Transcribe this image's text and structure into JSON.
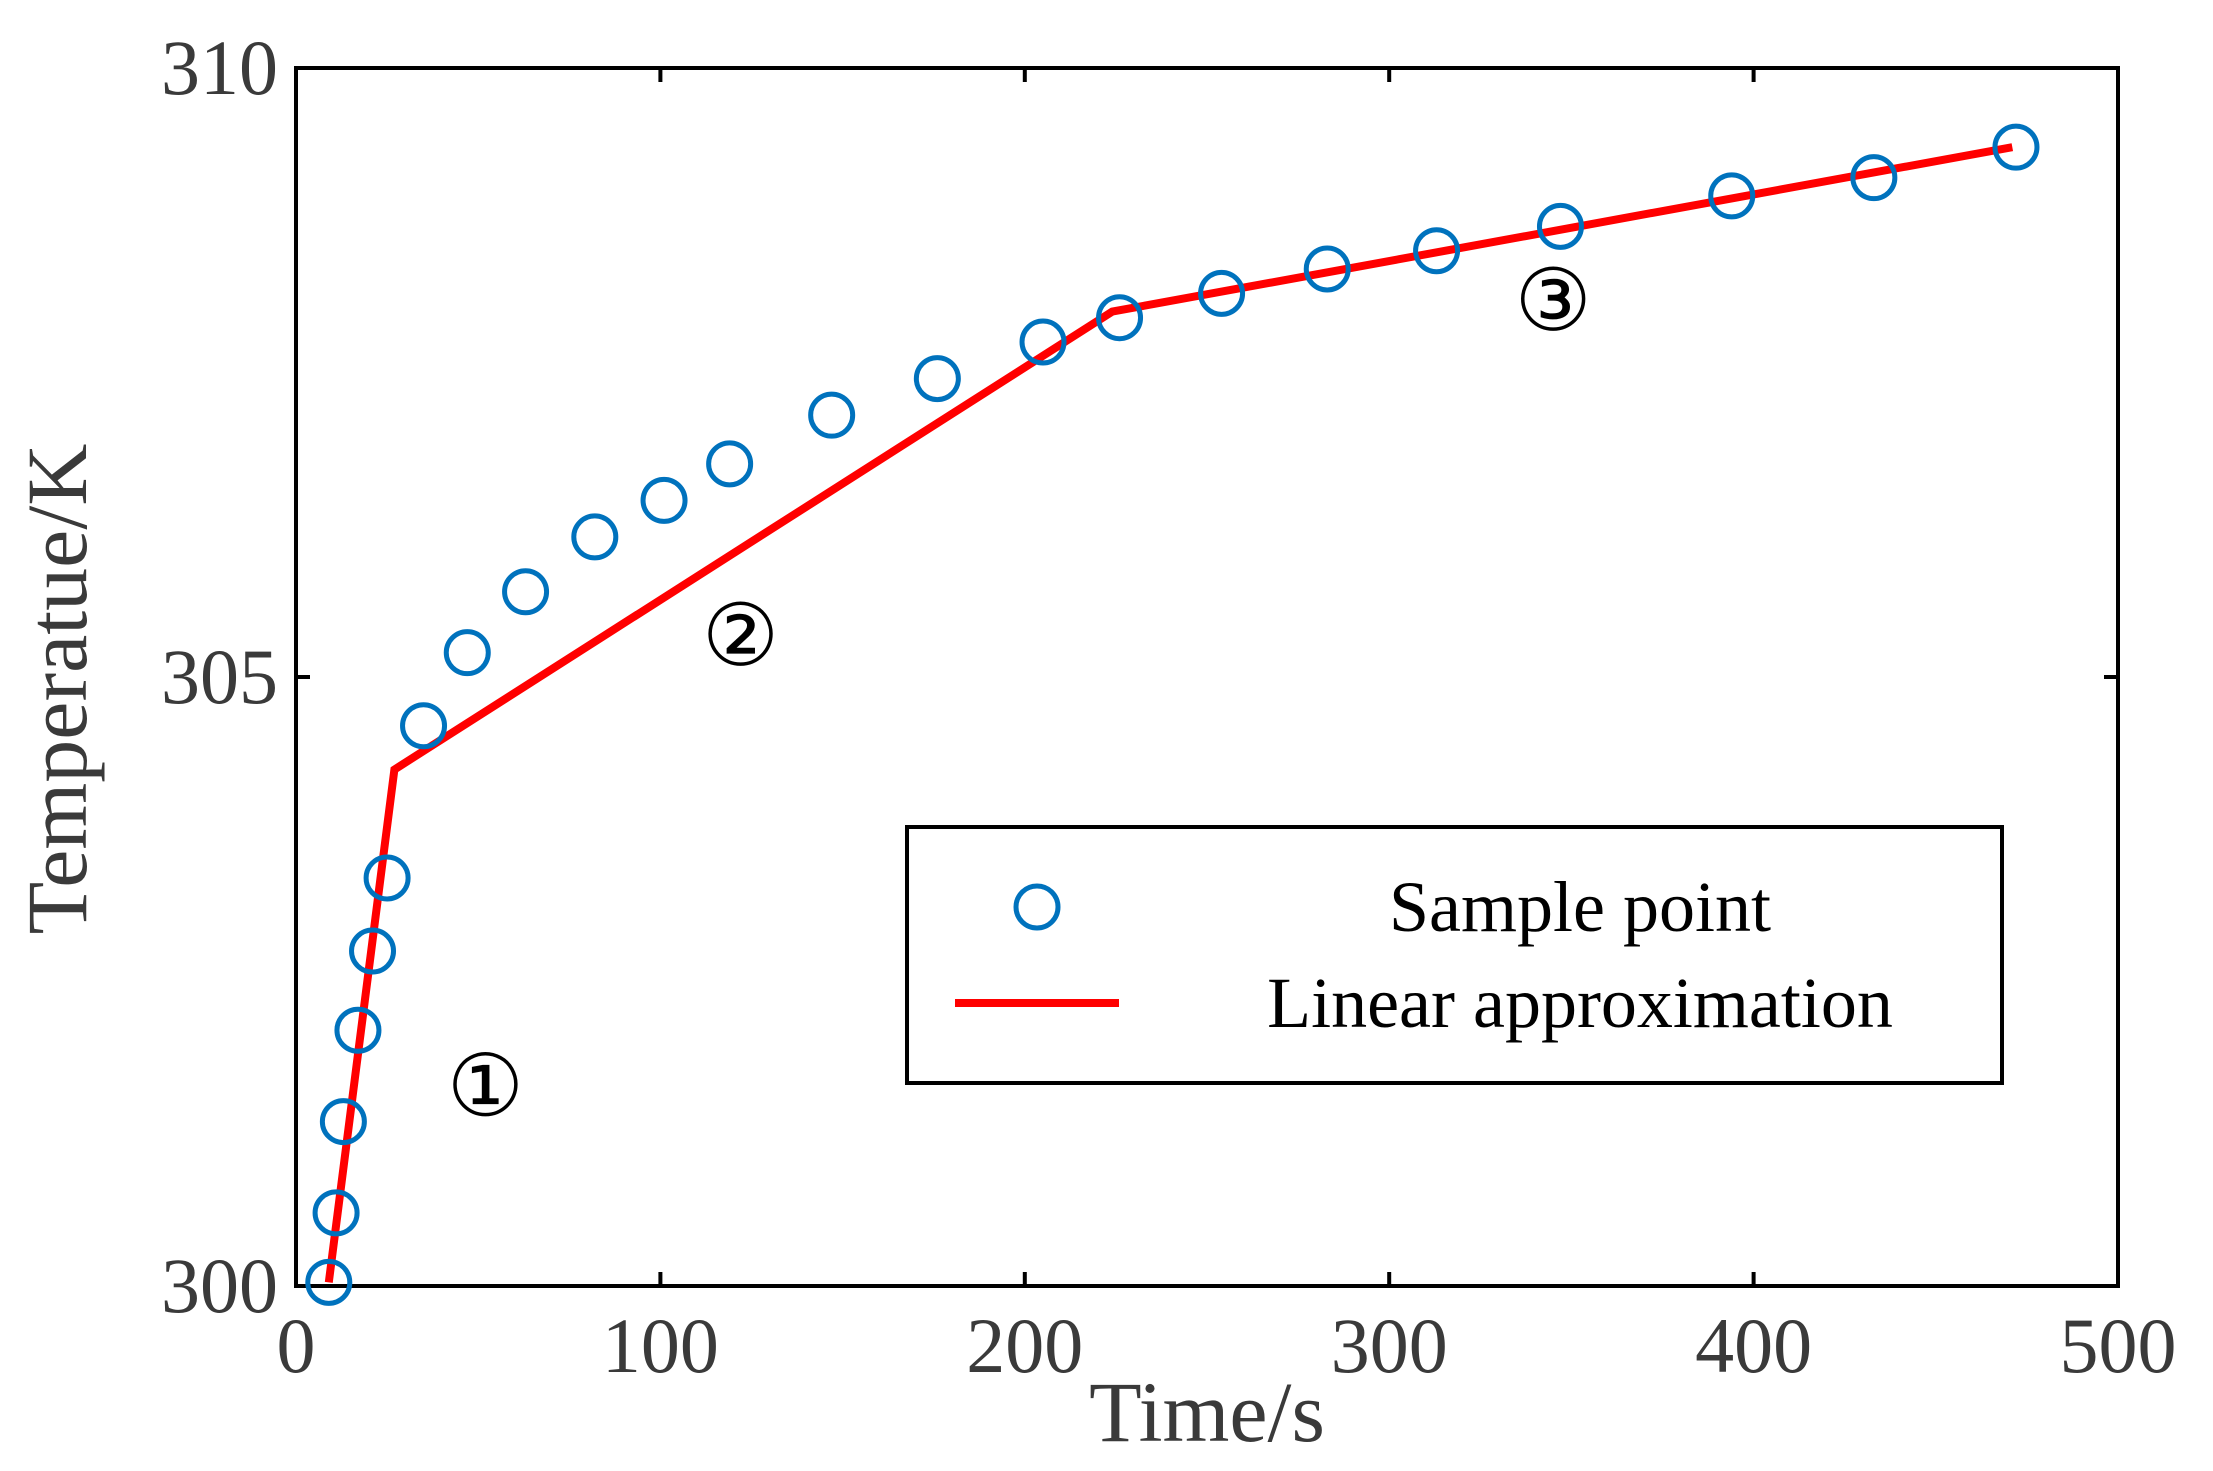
{
  "chart_data": {
    "type": "scatter",
    "title": "",
    "xlabel": "Time/s",
    "ylabel": "Temperatue/K",
    "xlim": [
      0,
      500
    ],
    "ylim": [
      300,
      310
    ],
    "xticks": [
      "0",
      "100",
      "200",
      "300",
      "400",
      "500"
    ],
    "yticks": [
      "300",
      "305",
      "310"
    ],
    "grid": false,
    "legend_position": "center-right",
    "series": [
      {
        "name": "Sample point",
        "kind": "scatter",
        "marker": "circle-open",
        "color": "#0072BD",
        "x": [
          9,
          11,
          13,
          17,
          21,
          25,
          35,
          47,
          63,
          82,
          101,
          119,
          147,
          176,
          205,
          226,
          254,
          283,
          313,
          347,
          394,
          433,
          472
        ],
        "y": [
          300.03,
          300.6,
          301.35,
          302.1,
          302.75,
          303.35,
          304.6,
          305.2,
          305.7,
          306.15,
          306.45,
          306.75,
          307.15,
          307.45,
          307.75,
          307.95,
          308.15,
          308.35,
          308.5,
          308.7,
          308.95,
          309.1,
          309.35
        ]
      },
      {
        "name": "Linear approximation",
        "kind": "line",
        "color": "#FF0000",
        "x": [
          9,
          27,
          224,
          471
        ],
        "y": [
          300.03,
          304.24,
          308.0,
          309.35
        ]
      }
    ],
    "annotations": [
      {
        "text": "①",
        "x": 52,
        "y": 301.4
      },
      {
        "text": "②",
        "x": 122,
        "y": 305.1
      },
      {
        "text": "③",
        "x": 345,
        "y": 307.85
      }
    ]
  }
}
